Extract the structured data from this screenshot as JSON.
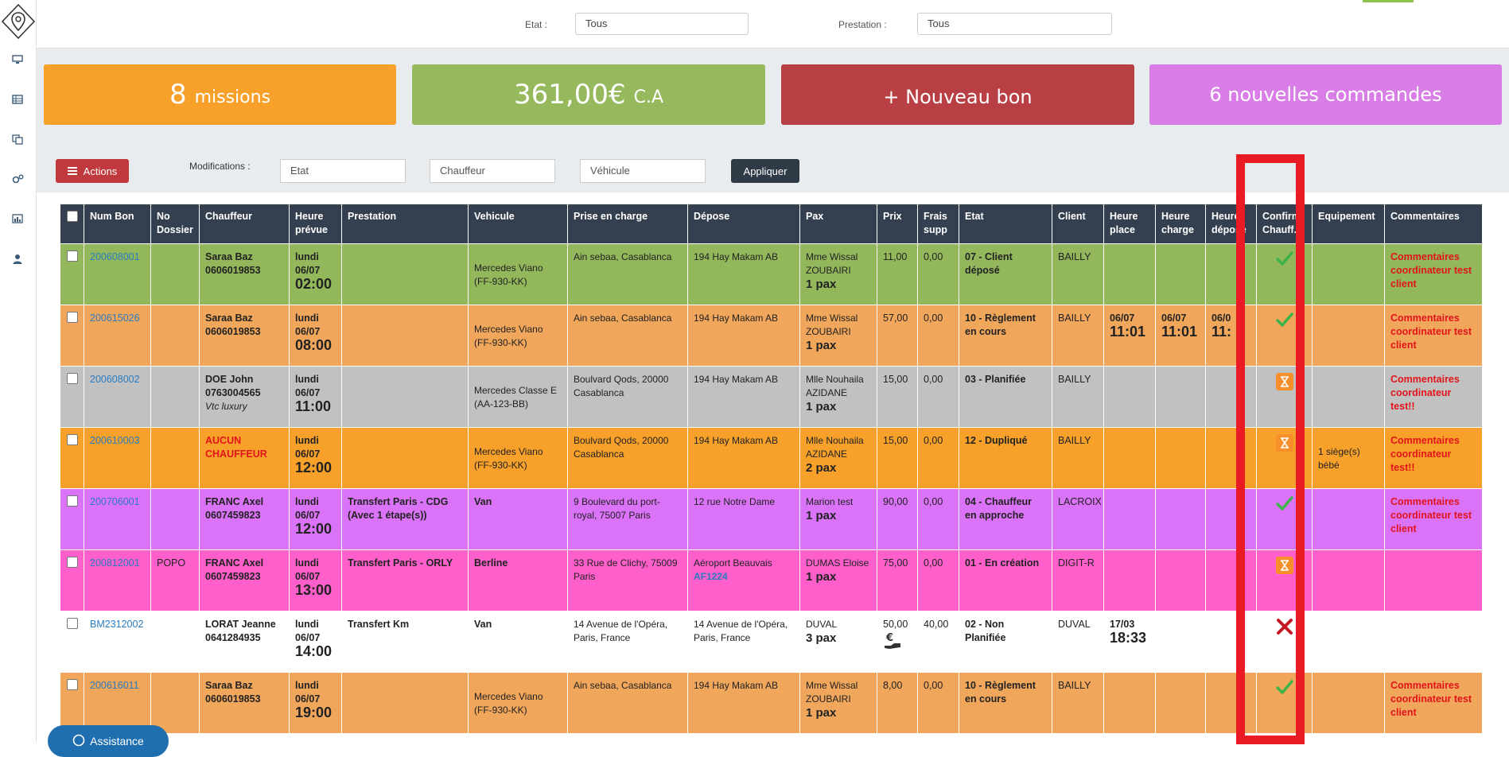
{
  "filters": {
    "etat_label": "Etat :",
    "etat_value": "Tous",
    "prestation_label": "Prestation :",
    "prestation_value": "Tous"
  },
  "stats": {
    "missions_count": "8",
    "missions_label": "missions",
    "ca_value": "361,00€",
    "ca_label": "C.A",
    "nouveau_bon": "+ Nouveau bon",
    "commandes": "6 nouvelles commandes"
  },
  "actions": {
    "actions_label": "Actions",
    "modifications_label": "Modifications :",
    "etat_placeholder": "Etat",
    "chauffeur_placeholder": "Chauffeur",
    "vehicule_placeholder": "Véhicule",
    "apply_label": "Appliquer"
  },
  "colors": {
    "orange": "#f7a02a",
    "green": "#95b95c",
    "red": "#b84045",
    "violet": "#d97ee6",
    "row_green": "#93b75b",
    "row_orange": "#f0a65b",
    "row_grey": "#c1c1c1",
    "row_dark_orange": "#f7a02a",
    "row_purple": "#da73f7",
    "row_pink": "#ff5fcb",
    "row_white": "#ffffff",
    "highlight": "#ea1b24"
  },
  "table": {
    "headers": [
      "Num Bon",
      "No Dossier",
      "Chauffeur",
      "Heure prévue",
      "Prestation",
      "Vehicule",
      "Prise en charge",
      "Dépose",
      "Pax",
      "Prix",
      "Frais supp",
      "Etat",
      "Client",
      "Heure place",
      "Heure charge",
      "Heure dépose",
      "Confirm. Chauff.",
      "Equipement",
      "Commentaires"
    ],
    "rows": [
      {
        "bon": "200608001",
        "dossier": "",
        "chauffeur": "Saraa Baz",
        "tel": "0606019853",
        "sub": "",
        "day": "lundi",
        "date": "06/07",
        "time": "02:00",
        "prestation": "",
        "vehicule": "Mercedes Viano (FF-930-KK)",
        "prise": "Ain sebaa, Casablanca",
        "depose": "194 Hay Makam AB",
        "flight": "",
        "pax_name": "Mme Wissal ZOUBAIRI",
        "pax_count": "1 pax",
        "prix": "11,00",
        "frais": "0,00",
        "etat": "07 - Client déposé",
        "client": "BAILLY",
        "hp_date": "",
        "hp_time": "",
        "hc_date": "",
        "hc_time": "",
        "hd_date": "",
        "hd_time": "",
        "confirm": "check",
        "equipement": "",
        "comment": "Commentaires coordinateur test client"
      },
      {
        "bon": "200615026",
        "dossier": "",
        "chauffeur": "Saraa Baz",
        "tel": "0606019853",
        "sub": "",
        "day": "lundi",
        "date": "06/07",
        "time": "08:00",
        "prestation": "",
        "vehicule": "Mercedes Viano (FF-930-KK)",
        "prise": "Ain sebaa, Casablanca",
        "depose": "194 Hay Makam AB",
        "flight": "",
        "pax_name": "Mme Wissal ZOUBAIRI",
        "pax_count": "1 pax",
        "prix": "57,00",
        "frais": "0,00",
        "etat": "10 - Règlement en cours",
        "client": "BAILLY",
        "hp_date": "06/07",
        "hp_time": "11:01",
        "hc_date": "06/07",
        "hc_time": "11:01",
        "hd_date": "06/0",
        "hd_time": "11:",
        "confirm": "check",
        "equipement": "",
        "comment": "Commentaires coordinateur test client"
      },
      {
        "bon": "200608002",
        "dossier": "",
        "chauffeur": "DOE John",
        "tel": "0763004565",
        "sub": "Vtc luxury",
        "day": "lundi",
        "date": "06/07",
        "time": "11:00",
        "prestation": "",
        "vehicule": "Mercedes Classe E (AA-123-BB)",
        "prise": "Boulvard Qods, 20000 Casablanca",
        "depose": "194 Hay Makam AB",
        "flight": "",
        "pax_name": "Mlle Nouhaila AZIDANE",
        "pax_count": "1 pax",
        "prix": "15,00",
        "frais": "0,00",
        "etat": "03 - Planifiée",
        "client": "BAILLY",
        "hp_date": "",
        "hp_time": "",
        "hc_date": "",
        "hc_time": "",
        "hd_date": "",
        "hd_time": "",
        "confirm": "hourglass",
        "equipement": "",
        "comment": "Commentaires coordinateur test!!"
      },
      {
        "bon": "200610003",
        "dossier": "",
        "chauffeur": "AUCUN CHAUFFEUR",
        "tel": "",
        "sub": "",
        "day": "lundi",
        "date": "06/07",
        "time": "12:00",
        "prestation": "",
        "vehicule": "Mercedes Viano (FF-930-KK)",
        "prise": "Boulvard Qods, 20000 Casablanca",
        "depose": "194 Hay Makam AB",
        "flight": "",
        "pax_name": "Mlle Nouhaila AZIDANE",
        "pax_count": "2 pax",
        "prix": "15,00",
        "frais": "0,00",
        "etat": "12 - Dupliqué",
        "client": "BAILLY",
        "hp_date": "",
        "hp_time": "",
        "hc_date": "",
        "hc_time": "",
        "hd_date": "",
        "hd_time": "",
        "confirm": "hourglass",
        "equipement": "1 siège(s) bébé",
        "comment": "Commentaires coordinateur test!!"
      },
      {
        "bon": "200706001",
        "dossier": "",
        "chauffeur": "FRANC Axel",
        "tel": "0607459823",
        "sub": "",
        "day": "lundi",
        "date": "06/07",
        "time": "12:00",
        "prestation": "Transfert Paris - CDG (Avec 1 étape(s))",
        "vehicule": "Van",
        "prise": "9 Boulevard du port-royal, 75007 Paris",
        "depose": "12 rue Notre Dame",
        "flight": "",
        "pax_name": "Marion test",
        "pax_count": "1 pax",
        "prix": "90,00",
        "frais": "0,00",
        "etat": "04 - Chauffeur en approche",
        "client": "LACROIX",
        "hp_date": "",
        "hp_time": "",
        "hc_date": "",
        "hc_time": "",
        "hd_date": "",
        "hd_time": "",
        "confirm": "check",
        "equipement": "",
        "comment": "Commentaires coordinateur test client"
      },
      {
        "bon": "200812001",
        "dossier": "POPO",
        "chauffeur": "FRANC Axel",
        "tel": "0607459823",
        "sub": "",
        "day": "lundi",
        "date": "06/07",
        "time": "13:00",
        "prestation": "Transfert Paris - ORLY",
        "vehicule": "Berline",
        "prise": "33 Rue de Clichy, 75009 Paris",
        "depose": "Aéroport Beauvais",
        "flight": "AF1224",
        "pax_name": "DUMAS Eloise",
        "pax_count": "1 pax",
        "prix": "75,00",
        "frais": "0,00",
        "etat": "01 - En création",
        "client": "DIGIT-R",
        "hp_date": "",
        "hp_time": "",
        "hc_date": "",
        "hc_time": "",
        "hd_date": "",
        "hd_time": "",
        "confirm": "hourglass",
        "equipement": "",
        "comment": ""
      },
      {
        "bon": "BM2312002",
        "dossier": "",
        "chauffeur": "LORAT Jeanne",
        "tel": "0641284935",
        "sub": "",
        "day": "lundi",
        "date": "06/07",
        "time": "14:00",
        "prestation": "Transfert Km",
        "vehicule": "Van",
        "prise": "14 Avenue de l'Opéra, Paris, France",
        "depose": "14 Avenue de l'Opéra, Paris, France",
        "flight": "",
        "pax_name": "DUVAL",
        "pax_count": "3 pax",
        "prix": "50,00",
        "frais": "40,00",
        "etat": "02 - Non Planifiée",
        "client": "DUVAL",
        "hp_date": "17/03",
        "hp_time": "18:33",
        "hc_date": "",
        "hc_time": "",
        "hd_date": "",
        "hd_time": "",
        "confirm": "cross",
        "equipement": "",
        "comment": ""
      },
      {
        "bon": "200616011",
        "dossier": "",
        "chauffeur": "Saraa Baz",
        "tel": "0606019853",
        "sub": "",
        "day": "lundi",
        "date": "06/07",
        "time": "19:00",
        "prestation": "",
        "vehicule": "Mercedes Viano (FF-930-KK)",
        "prise": "Ain sebaa, Casablanca",
        "depose": "194 Hay Makam AB",
        "flight": "",
        "pax_name": "Mme Wissal ZOUBAIRI",
        "pax_count": "1 pax",
        "prix": "8,00",
        "frais": "0,00",
        "etat": "10 - Règlement en cours",
        "client": "BAILLY",
        "hp_date": "",
        "hp_time": "",
        "hc_date": "",
        "hc_time": "",
        "hd_date": "",
        "hd_time": "",
        "confirm": "check",
        "equipement": "",
        "comment": "Commentaires coordinateur test client"
      }
    ]
  },
  "assistance": {
    "label": "Assistance"
  }
}
